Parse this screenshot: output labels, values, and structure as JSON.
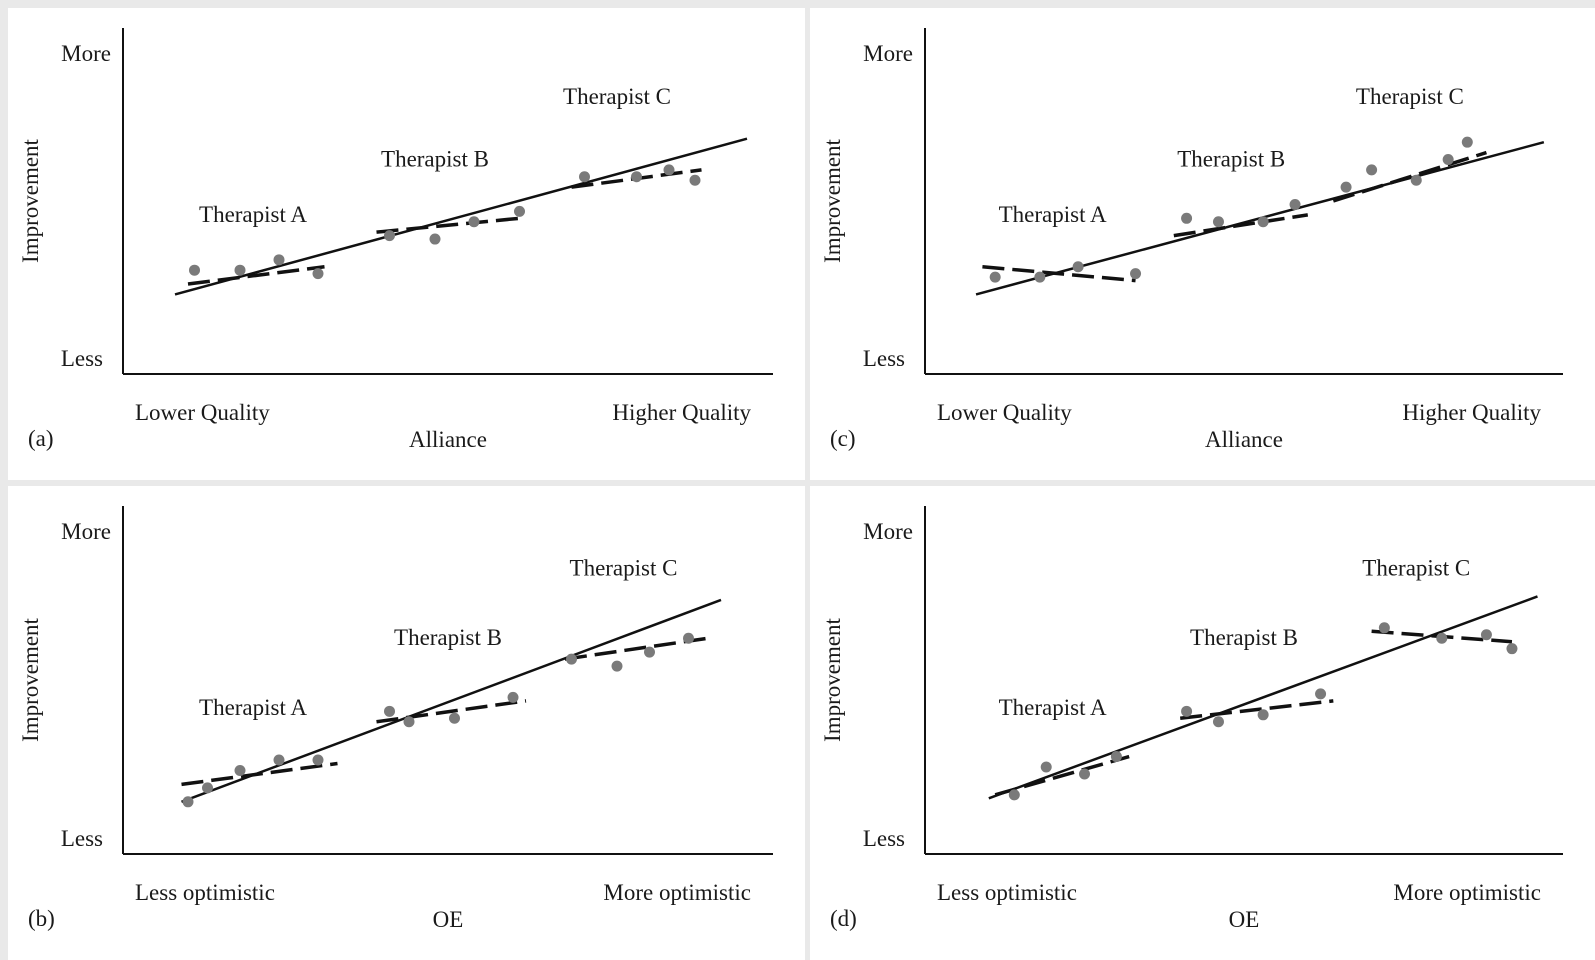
{
  "chart_data": [
    {
      "panel_label": "(a)",
      "type": "scatter",
      "xlabel": "Alliance",
      "ylabel": "Improvement",
      "x_low_label": "Lower Quality",
      "x_high_label": "Higher Quality",
      "y_high_label": "More",
      "y_low_label": "Less",
      "xlim": [
        0,
        10
      ],
      "ylim": [
        0,
        10
      ],
      "overall_line": {
        "x": [
          0.8,
          9.6
        ],
        "y": [
          2.3,
          6.8
        ]
      },
      "groups": [
        {
          "name": "Therapist A",
          "label_pos": {
            "x": 2.0,
            "y": 4.4
          },
          "points": [
            {
              "x": 1.1,
              "y": 3.0
            },
            {
              "x": 1.8,
              "y": 3.0
            },
            {
              "x": 2.4,
              "y": 3.3
            },
            {
              "x": 3.0,
              "y": 2.9
            }
          ],
          "line": {
            "x": [
              1.0,
              3.1
            ],
            "y": [
              2.6,
              3.1
            ]
          }
        },
        {
          "name": "Therapist B",
          "label_pos": {
            "x": 4.8,
            "y": 6.0
          },
          "points": [
            {
              "x": 4.1,
              "y": 4.0
            },
            {
              "x": 4.8,
              "y": 3.9
            },
            {
              "x": 5.4,
              "y": 4.4
            },
            {
              "x": 6.1,
              "y": 4.7
            }
          ],
          "line": {
            "x": [
              3.9,
              6.1
            ],
            "y": [
              4.1,
              4.5
            ]
          }
        },
        {
          "name": "Therapist C",
          "label_pos": {
            "x": 7.6,
            "y": 7.8
          },
          "points": [
            {
              "x": 7.1,
              "y": 5.7
            },
            {
              "x": 7.9,
              "y": 5.7
            },
            {
              "x": 8.4,
              "y": 5.9
            },
            {
              "x": 8.8,
              "y": 5.6
            }
          ],
          "line": {
            "x": [
              6.9,
              8.9
            ],
            "y": [
              5.4,
              5.9
            ]
          }
        }
      ]
    },
    {
      "panel_label": "(b)",
      "type": "scatter",
      "xlabel": "OE",
      "ylabel": "Improvement",
      "x_low_label": "Less optimistic",
      "x_high_label": "More optimistic",
      "y_high_label": "More",
      "y_low_label": "Less",
      "xlim": [
        0,
        10
      ],
      "ylim": [
        0,
        10
      ],
      "overall_line": {
        "x": [
          0.9,
          9.2
        ],
        "y": [
          1.5,
          7.3
        ]
      },
      "groups": [
        {
          "name": "Therapist A",
          "label_pos": {
            "x": 2.0,
            "y": 4.0
          },
          "points": [
            {
              "x": 1.0,
              "y": 1.5
            },
            {
              "x": 1.3,
              "y": 1.9
            },
            {
              "x": 1.8,
              "y": 2.4
            },
            {
              "x": 2.4,
              "y": 2.7
            },
            {
              "x": 3.0,
              "y": 2.7
            }
          ],
          "line": {
            "x": [
              0.9,
              3.3
            ],
            "y": [
              2.0,
              2.6
            ]
          }
        },
        {
          "name": "Therapist B",
          "label_pos": {
            "x": 5.0,
            "y": 6.0
          },
          "points": [
            {
              "x": 4.1,
              "y": 4.1
            },
            {
              "x": 4.4,
              "y": 3.8
            },
            {
              "x": 5.1,
              "y": 3.9
            },
            {
              "x": 6.0,
              "y": 4.5
            }
          ],
          "line": {
            "x": [
              3.9,
              6.2
            ],
            "y": [
              3.8,
              4.4
            ]
          }
        },
        {
          "name": "Therapist C",
          "label_pos": {
            "x": 7.7,
            "y": 8.0
          },
          "points": [
            {
              "x": 6.9,
              "y": 5.6
            },
            {
              "x": 7.6,
              "y": 5.4
            },
            {
              "x": 8.1,
              "y": 5.8
            },
            {
              "x": 8.7,
              "y": 6.2
            }
          ],
          "line": {
            "x": [
              6.8,
              9.0
            ],
            "y": [
              5.6,
              6.2
            ]
          }
        }
      ]
    },
    {
      "panel_label": "(c)",
      "type": "scatter",
      "xlabel": "Alliance",
      "ylabel": "Improvement",
      "x_low_label": "Lower Quality",
      "x_high_label": "Higher Quality",
      "y_high_label": "More",
      "y_low_label": "Less",
      "xlim": [
        0,
        10
      ],
      "ylim": [
        0,
        10
      ],
      "overall_line": {
        "x": [
          0.8,
          9.7
        ],
        "y": [
          2.3,
          6.7
        ]
      },
      "groups": [
        {
          "name": "Therapist A",
          "label_pos": {
            "x": 2.0,
            "y": 4.4
          },
          "points": [
            {
              "x": 1.1,
              "y": 2.8
            },
            {
              "x": 1.8,
              "y": 2.8
            },
            {
              "x": 2.4,
              "y": 3.1
            },
            {
              "x": 3.3,
              "y": 2.9
            }
          ],
          "line": {
            "x": [
              0.9,
              3.3
            ],
            "y": [
              3.1,
              2.7
            ]
          }
        },
        {
          "name": "Therapist B",
          "label_pos": {
            "x": 4.8,
            "y": 6.0
          },
          "points": [
            {
              "x": 4.1,
              "y": 4.5
            },
            {
              "x": 4.6,
              "y": 4.4
            },
            {
              "x": 5.3,
              "y": 4.4
            },
            {
              "x": 5.8,
              "y": 4.9
            }
          ],
          "line": {
            "x": [
              3.9,
              6.0
            ],
            "y": [
              4.0,
              4.6
            ]
          }
        },
        {
          "name": "Therapist C",
          "label_pos": {
            "x": 7.6,
            "y": 7.8
          },
          "points": [
            {
              "x": 6.6,
              "y": 5.4
            },
            {
              "x": 7.0,
              "y": 5.9
            },
            {
              "x": 7.7,
              "y": 5.6
            },
            {
              "x": 8.2,
              "y": 6.2
            },
            {
              "x": 8.5,
              "y": 6.7
            }
          ],
          "line": {
            "x": [
              6.4,
              8.8
            ],
            "y": [
              5.0,
              6.4
            ]
          }
        }
      ]
    },
    {
      "panel_label": "(d)",
      "type": "scatter",
      "xlabel": "OE",
      "ylabel": "Improvement",
      "x_low_label": "Less optimistic",
      "x_high_label": "More optimistic",
      "y_high_label": "More",
      "y_low_label": "Less",
      "xlim": [
        0,
        10
      ],
      "ylim": [
        0,
        10
      ],
      "overall_line": {
        "x": [
          1.0,
          9.6
        ],
        "y": [
          1.6,
          7.4
        ]
      },
      "groups": [
        {
          "name": "Therapist A",
          "label_pos": {
            "x": 2.0,
            "y": 4.0
          },
          "points": [
            {
              "x": 1.4,
              "y": 1.7
            },
            {
              "x": 1.9,
              "y": 2.5
            },
            {
              "x": 2.5,
              "y": 2.3
            },
            {
              "x": 3.0,
              "y": 2.8
            }
          ],
          "line": {
            "x": [
              1.1,
              3.2
            ],
            "y": [
              1.7,
              2.8
            ]
          }
        },
        {
          "name": "Therapist B",
          "label_pos": {
            "x": 5.0,
            "y": 6.0
          },
          "points": [
            {
              "x": 4.1,
              "y": 4.1
            },
            {
              "x": 4.6,
              "y": 3.8
            },
            {
              "x": 5.3,
              "y": 4.0
            },
            {
              "x": 6.2,
              "y": 4.6
            }
          ],
          "line": {
            "x": [
              4.0,
              6.4
            ],
            "y": [
              3.9,
              4.4
            ]
          }
        },
        {
          "name": "Therapist C",
          "label_pos": {
            "x": 7.7,
            "y": 8.0
          },
          "points": [
            {
              "x": 7.2,
              "y": 6.5
            },
            {
              "x": 8.1,
              "y": 6.2
            },
            {
              "x": 8.8,
              "y": 6.3
            },
            {
              "x": 9.2,
              "y": 5.9
            }
          ],
          "line": {
            "x": [
              7.0,
              9.2
            ],
            "y": [
              6.4,
              6.1
            ]
          }
        }
      ]
    }
  ]
}
